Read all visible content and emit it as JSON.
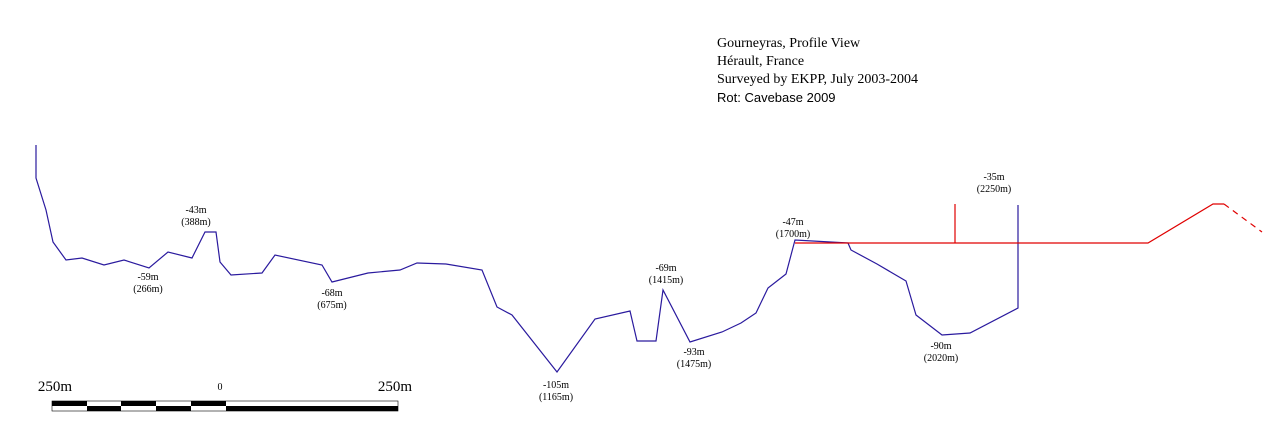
{
  "header": {
    "title": "Gourneyras, Profile View",
    "region": "Hérault, France",
    "survey": "Surveyed by EKPP, July 2003-2004",
    "rot": "Rot: Cavebase 2009"
  },
  "colors": {
    "survey_line": "#2a1a9e",
    "extension_line": "#e00000",
    "text": "#000000"
  },
  "depth_labels": [
    {
      "depth": "-43m",
      "dist": "(388m)"
    },
    {
      "depth": "-59m",
      "dist": "(266m)"
    },
    {
      "depth": "-68m",
      "dist": "(675m)"
    },
    {
      "depth": "-105m",
      "dist": "(1165m)"
    },
    {
      "depth": "-69m",
      "dist": "(1415m)"
    },
    {
      "depth": "-93m",
      "dist": "(1475m)"
    },
    {
      "depth": "-47m",
      "dist": "(1700m)"
    },
    {
      "depth": "-90m",
      "dist": "(2020m)"
    },
    {
      "depth": "-35m",
      "dist": "(2250m)"
    }
  ],
  "scale_bar": {
    "left_label": "250m",
    "center_label": "0",
    "right_label": "250m"
  }
}
